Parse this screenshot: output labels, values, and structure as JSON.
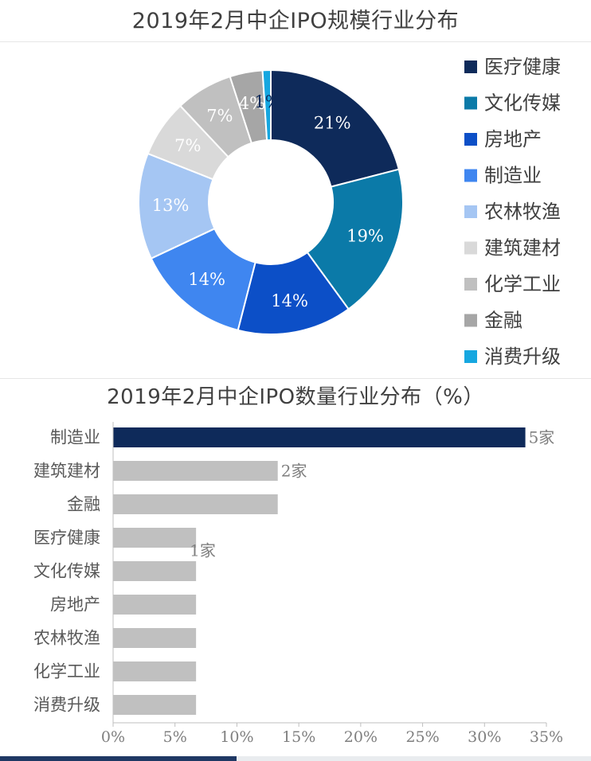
{
  "chart_data": [
    {
      "type": "pie",
      "donut": true,
      "title": "2019年2月中企IPO规模行业分布",
      "legend_position": "right",
      "slices": [
        {
          "name": "医疗健康",
          "value": 21,
          "label": "21%",
          "color": "#0e2a5a",
          "label_color": "#ffffff"
        },
        {
          "name": "文化传媒",
          "value": 19,
          "label": "19%",
          "color": "#0b7aa8",
          "label_color": "#ffffff"
        },
        {
          "name": "房地产",
          "value": 14,
          "label": "14%",
          "color": "#0c4fc7",
          "label_color": "#ffffff"
        },
        {
          "name": "制造业",
          "value": 14,
          "label": "14%",
          "color": "#3f86f0",
          "label_color": "#ffffff"
        },
        {
          "name": "农林牧渔",
          "value": 13,
          "label": "13%",
          "color": "#a5c6f3",
          "label_color": "#ffffff"
        },
        {
          "name": "建筑建材",
          "value": 7,
          "label": "7%",
          "color": "#d9d9d9",
          "label_color": "#ffffff"
        },
        {
          "name": "化学工业",
          "value": 7,
          "label": "7%",
          "color": "#c0c0c0",
          "label_color": "#ffffff"
        },
        {
          "name": "金融",
          "value": 4,
          "label": "4%",
          "color": "#a6a6a6",
          "label_color": "#ffffff"
        },
        {
          "name": "消费升级",
          "value": 1,
          "label": "1%",
          "color": "#16a7e0",
          "label_color": "#0e2a5a"
        }
      ]
    },
    {
      "type": "bar",
      "orientation": "horizontal",
      "title": "2019年2月中企IPO数量行业分布（%）",
      "categories": [
        "制造业",
        "建筑建材",
        "金融",
        "医疗健康",
        "文化传媒",
        "房地产",
        "农林牧渔",
        "化学工业",
        "消费升级"
      ],
      "values": [
        33.3,
        13.3,
        13.3,
        6.7,
        6.7,
        6.7,
        6.7,
        6.7,
        6.7
      ],
      "bar_colors": [
        "#0e2a5a",
        "#c0c0c0",
        "#c0c0c0",
        "#c0c0c0",
        "#c0c0c0",
        "#c0c0c0",
        "#c0c0c0",
        "#c0c0c0",
        "#c0c0c0"
      ],
      "data_labels": [
        "5家",
        "2家",
        "",
        "1家",
        "",
        "",
        "",
        "",
        ""
      ],
      "xlim": [
        0,
        35
      ],
      "xticks": [
        "0%",
        "5%",
        "10%",
        "15%",
        "20%",
        "25%",
        "30%",
        "35%"
      ],
      "grid": false
    }
  ]
}
